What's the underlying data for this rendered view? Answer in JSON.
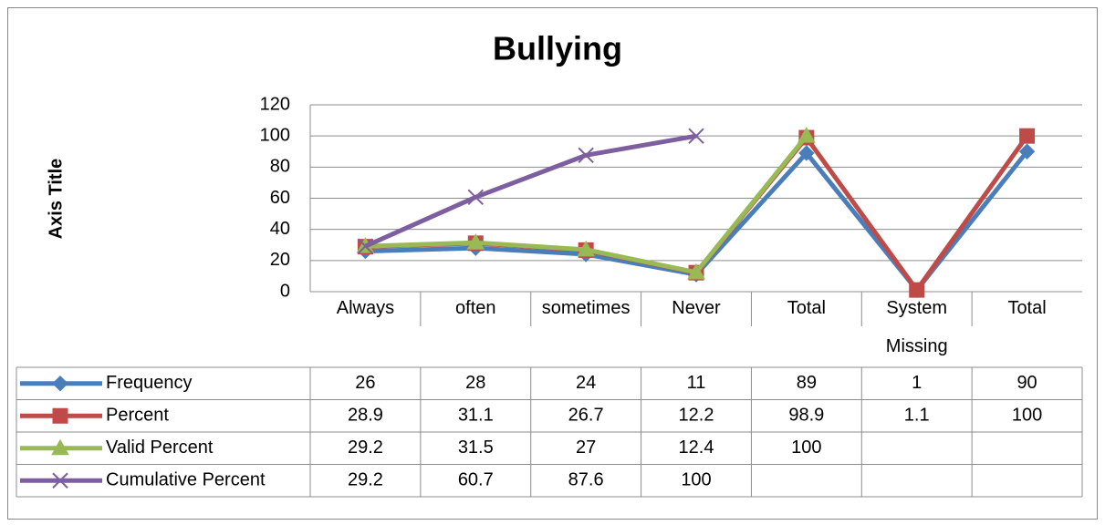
{
  "chart_data": {
    "type": "line",
    "title": "Bullying",
    "y_label": "Axis Title",
    "categories": [
      "Always",
      "often",
      "sometimes",
      "Never",
      "Total",
      "System Missing",
      "Total"
    ],
    "series": [
      {
        "name": "Frequency",
        "color": "#4a7ebb",
        "marker": "diamond",
        "values": [
          26,
          28,
          24,
          11,
          89,
          1,
          90
        ]
      },
      {
        "name": "Percent",
        "color": "#be4b48",
        "marker": "square",
        "values": [
          28.9,
          31.1,
          26.7,
          12.2,
          98.9,
          1.1,
          100
        ]
      },
      {
        "name": "Valid Percent",
        "color": "#98b954",
        "marker": "triangle",
        "values": [
          29.2,
          31.5,
          27,
          12.4,
          100,
          null,
          null
        ]
      },
      {
        "name": "Cumulative Percent",
        "color": "#7d5fa0",
        "marker": "x",
        "values": [
          29.2,
          60.7,
          87.6,
          100,
          null,
          null,
          null
        ]
      }
    ],
    "ylim": [
      0,
      120
    ],
    "yticks": [
      0,
      20,
      40,
      60,
      80,
      100,
      120
    ],
    "grid": true,
    "data_table": true
  }
}
